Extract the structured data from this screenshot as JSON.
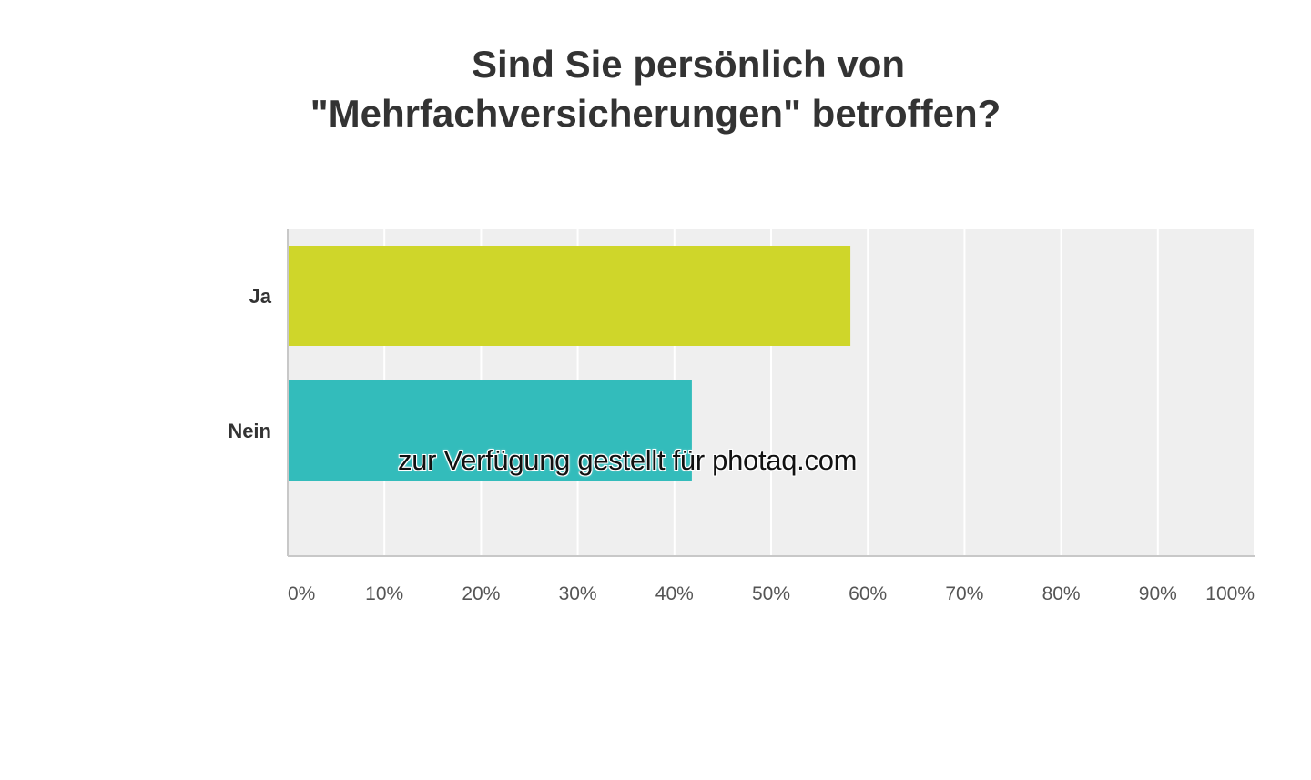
{
  "title_line1": "Sind Sie persönlich von",
  "title_line2": "\"Mehrfachversicherungen\" betroffen?",
  "watermark": "zur Verfügung gestellt für photaq.com",
  "colors": {
    "plot_background": "#efefef",
    "gridline": "#ffffff",
    "axis": "#c8c8c8",
    "tick_label": "#555555",
    "category_label": "#333333"
  },
  "chart_data": {
    "type": "bar",
    "orientation": "horizontal",
    "title": "Sind Sie persönlich von \"Mehrfachversicherungen\" betroffen?",
    "categories": [
      "Ja",
      "Nein"
    ],
    "values": [
      58.2,
      41.8
    ],
    "colors": [
      "#cfd62a",
      "#33bcbb"
    ],
    "xlim": [
      0,
      100
    ],
    "x_ticks": [
      "0%",
      "10%",
      "20%",
      "30%",
      "40%",
      "50%",
      "60%",
      "70%",
      "80%",
      "90%",
      "100%"
    ],
    "grid": true,
    "xlabel": "",
    "ylabel": ""
  }
}
